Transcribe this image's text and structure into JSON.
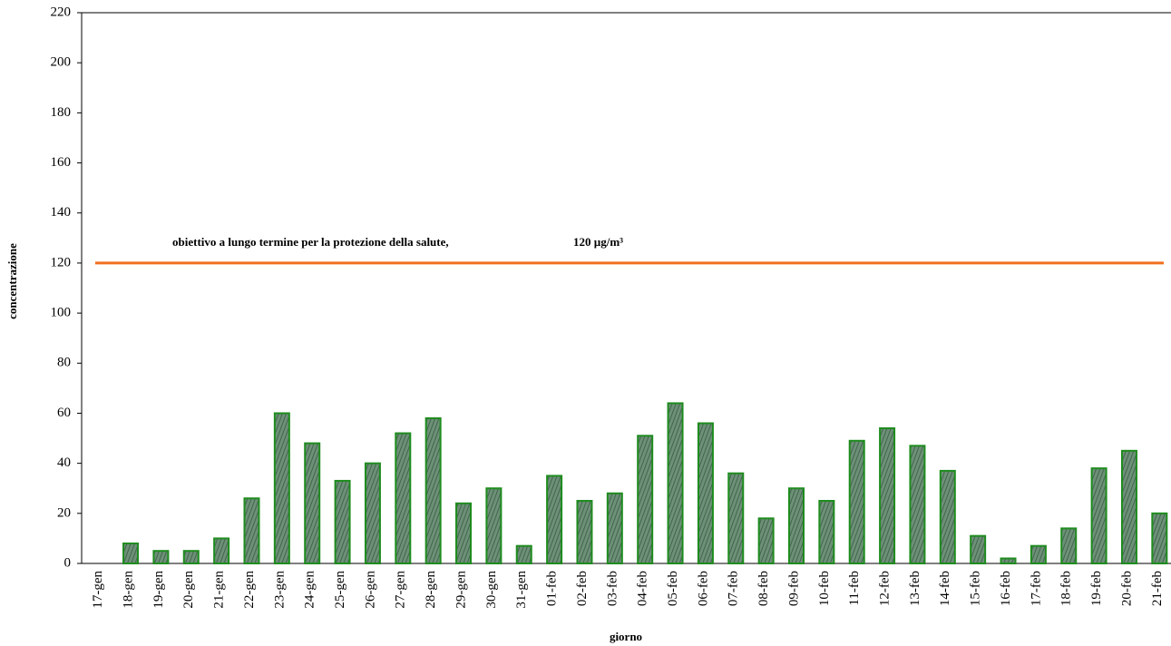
{
  "chart_data": {
    "type": "bar",
    "x_label": "giorno",
    "y_label": "concentrazione",
    "categories": [
      "17-gen",
      "18-gen",
      "19-gen",
      "20-gen",
      "21-gen",
      "22-gen",
      "23-gen",
      "24-gen",
      "25-gen",
      "26-gen",
      "27-gen",
      "28-gen",
      "29-gen",
      "30-gen",
      "31-gen",
      "01-feb",
      "02-feb",
      "03-feb",
      "04-feb",
      "05-feb",
      "06-feb",
      "07-feb",
      "08-feb",
      "09-feb",
      "10-feb",
      "11-feb",
      "12-feb",
      "13-feb",
      "14-feb",
      "15-feb",
      "16-feb",
      "17-feb",
      "18-feb",
      "19-feb",
      "20-feb",
      "21-feb"
    ],
    "values": [
      0,
      8,
      5,
      5,
      10,
      26,
      60,
      48,
      33,
      40,
      52,
      58,
      24,
      30,
      7,
      35,
      25,
      28,
      51,
      64,
      56,
      36,
      18,
      30,
      25,
      49,
      54,
      47,
      37,
      11,
      2,
      7,
      14,
      38,
      45,
      20
    ],
    "color": "#4f7f5f",
    "edge_color": "#1e8c1e",
    "ylim": [
      0,
      220
    ],
    "yticks": [
      0,
      20,
      40,
      60,
      80,
      100,
      120,
      140,
      160,
      180,
      200,
      220
    ],
    "reference_line": {
      "value": 120,
      "label": "120 µg/m³",
      "color": "#f07020"
    },
    "annotation": "obiettivo a lungo termine per la protezione della salute,"
  }
}
